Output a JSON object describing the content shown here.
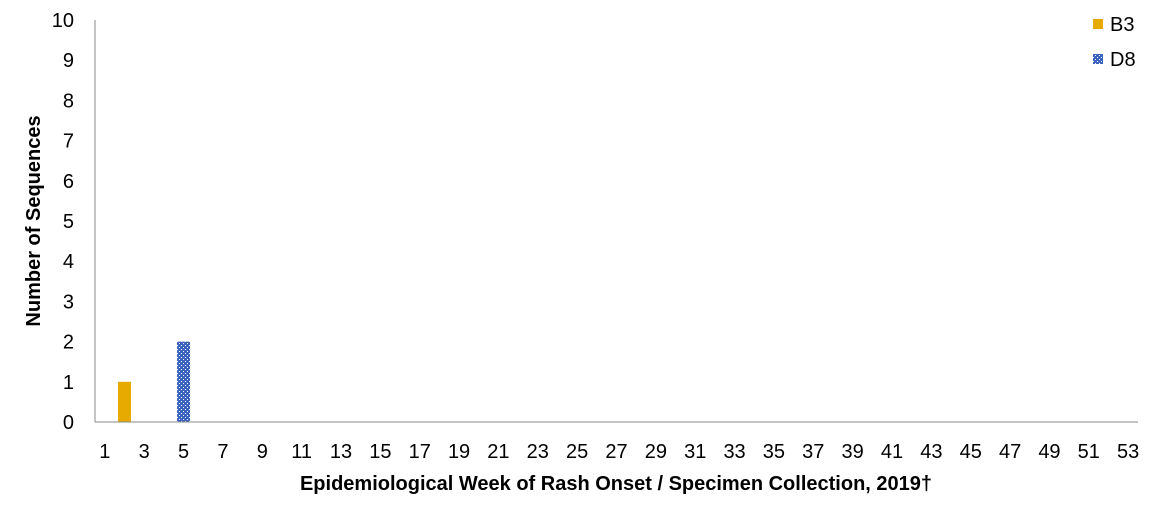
{
  "chart_data": {
    "type": "bar",
    "title": "",
    "xlabel": "Epidemiological Week of Rash Onset / Specimen Collection, 2019†",
    "ylabel": "Number of Sequences",
    "ylim": [
      0,
      10
    ],
    "yticks": [
      "0",
      "1",
      "2",
      "3",
      "4",
      "5",
      "6",
      "7",
      "8",
      "9",
      "10"
    ],
    "xlim": [
      1,
      53
    ],
    "xticks": [
      "1",
      "3",
      "5",
      "7",
      "9",
      "11",
      "13",
      "15",
      "17",
      "19",
      "21",
      "23",
      "25",
      "27",
      "29",
      "31",
      "33",
      "35",
      "37",
      "39",
      "41",
      "43",
      "45",
      "47",
      "49",
      "51",
      "53"
    ],
    "grid": false,
    "legend_position": "top-right",
    "series": [
      {
        "name": "B3",
        "color": "#E6AA00",
        "pattern": "solid",
        "points": [
          {
            "week": 2,
            "value": 1
          }
        ]
      },
      {
        "name": "D8",
        "color": "#3A64C0",
        "pattern": "dotted",
        "points": [
          {
            "week": 5,
            "value": 2
          }
        ]
      }
    ]
  }
}
